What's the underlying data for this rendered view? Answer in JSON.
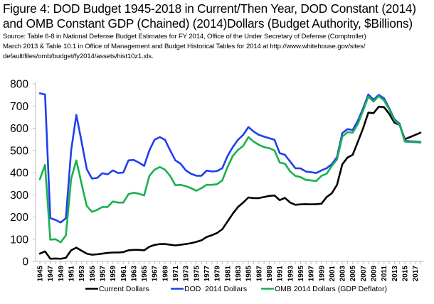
{
  "chart_data": {
    "type": "line",
    "title": "Figure 4: DOD Budget 1945-2018 in Current/Then Year, DOD Constant (2014) and OMB Constant GDP (Chained) (2014)Dollars (Budget Authority, $Billions)",
    "title_line1": "Figure 4: DOD Budget 1945-2018 in Current/Then Year, DOD Constant (2014)",
    "title_line2": "and OMB Constant GDP (Chained) (2014)Dollars (Budget Authority, $Billions)",
    "source_lines": [
      "Source: Table 6-8 in National Defense Budget Estimates for FY 2014, Office of the Under Secretary of Defense (Comptroller)",
      "March 2013 & Table 10.1 in  Office of Management and Budget Historical Tables for 2014 at http://www.whitehouse.gov/sites/",
      "default/files/omb/budget/fy2014/assets/hist10z1.xls."
    ],
    "xlabel": "",
    "ylabel": "",
    "ylim": [
      0,
      800
    ],
    "yticks": [
      0,
      100,
      200,
      300,
      400,
      500,
      600,
      700,
      800
    ],
    "xlim": [
      1945,
      2018
    ],
    "xtick_labels": [
      "1945",
      "1947",
      "1949",
      "1951",
      "1953",
      "1955",
      "1957",
      "1959",
      "1961",
      "1963",
      "1965",
      "1967",
      "1969",
      "1971",
      "1973",
      "1975",
      "1977",
      "1979",
      "1981",
      "1983",
      "1985",
      "1987",
      "1989",
      "1991",
      "1993",
      "1995",
      "1997",
      "1999",
      "2001",
      "2003",
      "2005",
      "2007",
      "2009",
      "2011",
      "2013",
      "2015",
      "2017"
    ],
    "grid": false,
    "legend_position": "bottom",
    "x": [
      1945,
      1946,
      1947,
      1948,
      1949,
      1950,
      1951,
      1952,
      1953,
      1954,
      1955,
      1956,
      1957,
      1958,
      1959,
      1960,
      1961,
      1962,
      1963,
      1964,
      1965,
      1966,
      1967,
      1968,
      1969,
      1970,
      1971,
      1972,
      1973,
      1974,
      1975,
      1976,
      1977,
      1978,
      1979,
      1980,
      1981,
      1982,
      1983,
      1984,
      1985,
      1986,
      1987,
      1988,
      1989,
      1990,
      1991,
      1992,
      1993,
      1994,
      1995,
      1996,
      1997,
      1998,
      1999,
      2000,
      2001,
      2002,
      2003,
      2004,
      2005,
      2006,
      2007,
      2008,
      2009,
      2010,
      2011,
      2012,
      2013,
      2014,
      2015,
      2016,
      2017,
      2018
    ],
    "series": [
      {
        "name": "Current Dollars",
        "color": "#000000",
        "values": [
          35,
          45,
          12,
          13,
          12,
          16,
          50,
          62,
          48,
          35,
          30,
          32,
          35,
          38,
          40,
          40,
          42,
          50,
          52,
          52,
          50,
          66,
          74,
          78,
          78,
          75,
          72,
          75,
          78,
          82,
          88,
          95,
          110,
          118,
          128,
          145,
          180,
          215,
          245,
          265,
          288,
          285,
          285,
          290,
          295,
          297,
          276,
          286,
          265,
          255,
          257,
          258,
          257,
          258,
          260,
          290,
          307,
          345,
          437,
          468,
          480,
          540,
          600,
          670,
          668,
          697,
          695,
          665,
          625,
          615,
          550,
          560,
          570,
          580
        ]
      },
      {
        "name": "DOD  2014 Dollars",
        "color": "#1f3ff0",
        "values": [
          757,
          752,
          195,
          187,
          175,
          195,
          500,
          660,
          540,
          415,
          373,
          376,
          397,
          392,
          410,
          398,
          400,
          455,
          457,
          445,
          430,
          500,
          548,
          560,
          548,
          500,
          455,
          440,
          410,
          395,
          386,
          386,
          409,
          405,
          407,
          420,
          475,
          515,
          548,
          570,
          605,
          585,
          570,
          562,
          555,
          548,
          488,
          480,
          450,
          420,
          419,
          405,
          402,
          398,
          410,
          420,
          438,
          470,
          578,
          596,
          592,
          635,
          690,
          752,
          728,
          750,
          735,
          690,
          640,
          620,
          543,
          541,
          540,
          538
        ]
      },
      {
        "name": "OMB 2014 Dollars (GDP Deflator)",
        "color": "#19b050",
        "values": [
          370,
          435,
          98,
          100,
          86,
          117,
          372,
          455,
          350,
          250,
          223,
          232,
          245,
          245,
          270,
          265,
          265,
          303,
          309,
          305,
          297,
          385,
          413,
          425,
          413,
          385,
          343,
          345,
          339,
          330,
          318,
          330,
          345,
          345,
          348,
          365,
          425,
          475,
          502,
          520,
          560,
          540,
          525,
          515,
          510,
          500,
          445,
          440,
          405,
          385,
          380,
          367,
          365,
          362,
          385,
          395,
          430,
          460,
          562,
          582,
          580,
          620,
          680,
          742,
          720,
          745,
          725,
          685,
          635,
          615,
          540,
          538,
          537,
          535
        ]
      }
    ]
  }
}
